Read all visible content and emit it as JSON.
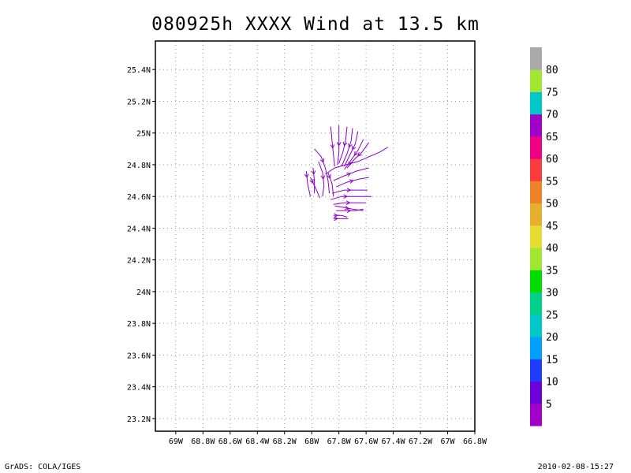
{
  "title": "080925h XXXX Wind at 13.5 km",
  "footer": {
    "left": "GrADS: COLA/IGES",
    "right": "2010-02-08-15:27"
  },
  "chart_data": {
    "type": "streamline",
    "title": "080925h XXXX Wind at 13.5 km",
    "x_axis": {
      "range": [
        -69.15,
        -66.8
      ],
      "ticks": [
        -69.0,
        -68.8,
        -68.6,
        -68.4,
        -68.2,
        -68.0,
        -67.8,
        -67.6,
        -67.4,
        -67.2,
        -67.0,
        -66.8
      ],
      "tick_labels": [
        "69W",
        "68.8W",
        "68.6W",
        "68.4W",
        "68.2W",
        "68W",
        "67.8W",
        "67.6W",
        "67.4W",
        "67.2W",
        "67W",
        "66.8W"
      ]
    },
    "y_axis": {
      "range": [
        23.12,
        25.58
      ],
      "ticks": [
        23.2,
        23.4,
        23.6,
        23.8,
        24.0,
        24.2,
        24.4,
        24.6,
        24.8,
        25.0,
        25.2,
        25.4
      ],
      "tick_labels": [
        "23.2N",
        "23.4N",
        "23.6N",
        "23.8N",
        "24N",
        "24.2N",
        "24.4N",
        "24.6N",
        "24.8N",
        "25N",
        "25.2N",
        "25.4N"
      ]
    },
    "grid": true,
    "grid_style": "dotted",
    "streamline_color": "#8c00c8",
    "streamlines": [
      [
        [
          -67.86,
          25.04
        ],
        [
          -67.85,
          24.95
        ],
        [
          -67.84,
          24.86
        ],
        [
          -67.83,
          24.79
        ]
      ],
      [
        [
          -67.8,
          25.05
        ],
        [
          -67.8,
          24.96
        ],
        [
          -67.8,
          24.88
        ],
        [
          -67.81,
          24.8
        ]
      ],
      [
        [
          -67.74,
          25.04
        ],
        [
          -67.75,
          24.96
        ],
        [
          -67.77,
          24.88
        ],
        [
          -67.8,
          24.81
        ]
      ],
      [
        [
          -67.7,
          25.03
        ],
        [
          -67.71,
          24.95
        ],
        [
          -67.74,
          24.87
        ],
        [
          -67.78,
          24.79
        ]
      ],
      [
        [
          -67.66,
          25.01
        ],
        [
          -67.68,
          24.93
        ],
        [
          -67.72,
          24.86
        ],
        [
          -67.76,
          24.79
        ]
      ],
      [
        [
          -67.62,
          24.96
        ],
        [
          -67.66,
          24.89
        ],
        [
          -67.71,
          24.83
        ],
        [
          -67.76,
          24.77
        ]
      ],
      [
        [
          -67.58,
          24.94
        ],
        [
          -67.63,
          24.88
        ],
        [
          -67.69,
          24.83
        ],
        [
          -67.74,
          24.78
        ]
      ],
      [
        [
          -67.98,
          24.9
        ],
        [
          -67.93,
          24.85
        ],
        [
          -67.9,
          24.78
        ],
        [
          -67.88,
          24.7
        ],
        [
          -67.87,
          24.62
        ]
      ],
      [
        [
          -67.95,
          24.82
        ],
        [
          -67.92,
          24.75
        ],
        [
          -67.91,
          24.67
        ],
        [
          -67.92,
          24.6
        ]
      ],
      [
        [
          -67.99,
          24.78
        ],
        [
          -67.98,
          24.7
        ],
        [
          -67.98,
          24.62
        ]
      ],
      [
        [
          -68.04,
          24.76
        ],
        [
          -68.03,
          24.68
        ],
        [
          -68.01,
          24.6
        ]
      ],
      [
        [
          -68.01,
          24.72
        ],
        [
          -67.97,
          24.65
        ],
        [
          -67.94,
          24.59
        ]
      ],
      [
        [
          -67.88,
          24.75
        ],
        [
          -67.85,
          24.68
        ],
        [
          -67.84,
          24.6
        ]
      ],
      [
        [
          -67.9,
          24.74
        ],
        [
          -67.83,
          24.78
        ],
        [
          -67.75,
          24.8
        ],
        [
          -67.66,
          24.82
        ],
        [
          -67.58,
          24.85
        ],
        [
          -67.5,
          24.88
        ],
        [
          -67.44,
          24.91
        ]
      ],
      [
        [
          -67.84,
          24.7
        ],
        [
          -67.76,
          24.73
        ],
        [
          -67.67,
          24.76
        ],
        [
          -67.58,
          24.78
        ]
      ],
      [
        [
          -67.82,
          24.66
        ],
        [
          -67.74,
          24.69
        ],
        [
          -67.65,
          24.71
        ],
        [
          -67.58,
          24.72
        ]
      ],
      [
        [
          -67.85,
          24.62
        ],
        [
          -67.76,
          24.64
        ],
        [
          -67.67,
          24.64
        ],
        [
          -67.59,
          24.64
        ]
      ],
      [
        [
          -67.86,
          24.58
        ],
        [
          -67.78,
          24.6
        ],
        [
          -67.7,
          24.6
        ],
        [
          -67.62,
          24.6
        ],
        [
          -67.56,
          24.6
        ]
      ],
      [
        [
          -67.84,
          24.55
        ],
        [
          -67.76,
          24.56
        ],
        [
          -67.68,
          24.56
        ],
        [
          -67.6,
          24.56
        ]
      ],
      [
        [
          -67.83,
          24.54
        ],
        [
          -67.76,
          24.53
        ],
        [
          -67.7,
          24.52
        ],
        [
          -67.62,
          24.51
        ]
      ],
      [
        [
          -67.82,
          24.51
        ],
        [
          -67.75,
          24.51
        ],
        [
          -67.68,
          24.51
        ],
        [
          -67.62,
          24.52
        ]
      ],
      [
        [
          -67.84,
          24.48
        ],
        [
          -67.78,
          24.48
        ],
        [
          -67.74,
          24.47
        ]
      ],
      [
        [
          -67.84,
          24.46
        ],
        [
          -67.78,
          24.46
        ],
        [
          -67.73,
          24.46
        ]
      ]
    ],
    "colorbar": {
      "labels": [
        "5",
        "10",
        "15",
        "20",
        "25",
        "30",
        "35",
        "40",
        "45",
        "50",
        "55",
        "60",
        "65",
        "70",
        "75",
        "80"
      ],
      "colors": [
        "#a000c8",
        "#6e00dc",
        "#1e3cff",
        "#00a0ff",
        "#00c8c8",
        "#00d28c",
        "#00dc00",
        "#a0e632",
        "#e6dc32",
        "#e6af2d",
        "#f08228",
        "#fa3c3c",
        "#f00082",
        "#a000c8",
        "#00c8c8",
        "#a0e632",
        "#aaaaaa"
      ]
    }
  }
}
